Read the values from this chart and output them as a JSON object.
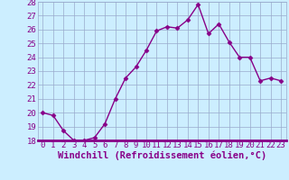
{
  "x": [
    0,
    1,
    2,
    3,
    4,
    5,
    6,
    7,
    8,
    9,
    10,
    11,
    12,
    13,
    14,
    15,
    16,
    17,
    18,
    19,
    20,
    21,
    22,
    23
  ],
  "y": [
    20.0,
    19.8,
    18.7,
    18.0,
    18.0,
    18.2,
    19.2,
    21.0,
    22.5,
    23.3,
    24.5,
    25.9,
    26.2,
    26.1,
    26.7,
    27.8,
    25.7,
    26.4,
    25.1,
    24.0,
    24.0,
    22.3,
    22.5,
    22.3
  ],
  "line_color": "#880088",
  "marker": "D",
  "marker_size": 2.5,
  "bg_color": "#cceeff",
  "grid_color": "#99aacc",
  "xlabel": "Windchill (Refroidissement éolien,°C)",
  "ylim": [
    18,
    28
  ],
  "yticks": [
    18,
    19,
    20,
    21,
    22,
    23,
    24,
    25,
    26,
    27,
    28
  ],
  "xticks": [
    0,
    1,
    2,
    3,
    4,
    5,
    6,
    7,
    8,
    9,
    10,
    11,
    12,
    13,
    14,
    15,
    16,
    17,
    18,
    19,
    20,
    21,
    22,
    23
  ],
  "xlabel_fontsize": 7.5,
  "tick_fontsize": 6.5,
  "line_width": 1.0,
  "spine_color": "#880088",
  "separator_color": "#880088"
}
